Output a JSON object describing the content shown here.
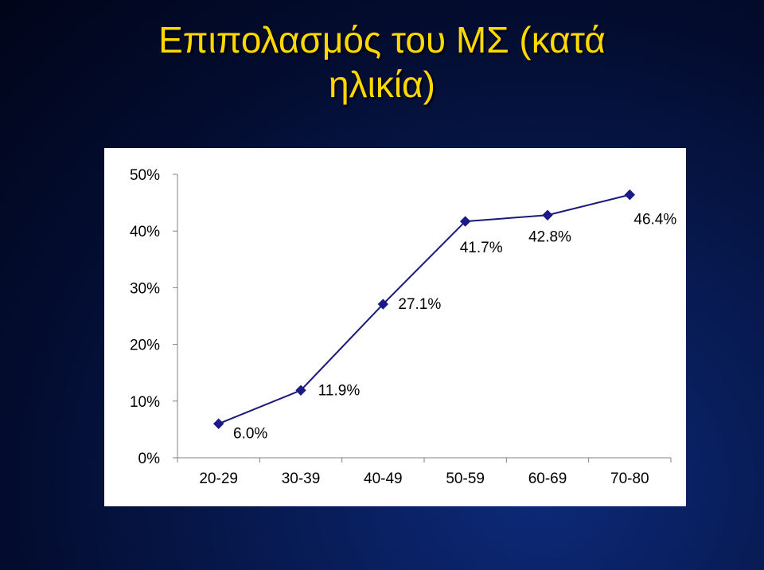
{
  "title": {
    "line1": "Επιπολασμός του ΜΣ (κατά",
    "line2": "ηλικία)"
  },
  "colors": {
    "title": "#ffd800",
    "line": "#1a1a7a",
    "marker": "#1a1a8c",
    "panel": "#ffffff"
  },
  "chart_data": {
    "type": "line",
    "categories": [
      "20-29",
      "30-39",
      "40-49",
      "50-59",
      "60-69",
      "70-80"
    ],
    "values": [
      6.0,
      11.9,
      27.1,
      41.7,
      42.8,
      46.4
    ],
    "data_labels": [
      "6.0%",
      "11.9%",
      "27.1%",
      "41.7%",
      "42.8%",
      "46.4%"
    ],
    "yticks": [
      0,
      10,
      20,
      30,
      40,
      50
    ],
    "ytick_labels": [
      "0%",
      "10%",
      "20%",
      "30%",
      "40%",
      "50%"
    ],
    "ylim": [
      0,
      50
    ],
    "xlabel": "",
    "ylabel": "",
    "grid": false,
    "legend": "none",
    "marker": "diamond"
  }
}
